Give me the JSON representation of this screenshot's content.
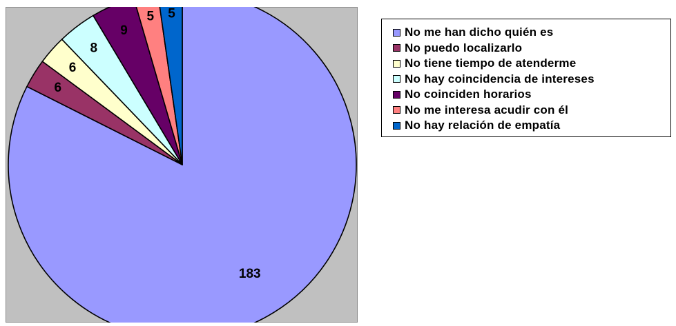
{
  "chart_data": {
    "type": "pie",
    "title": "",
    "categories": [
      "No me han dicho quién es",
      "No puedo localizarlo",
      "No tiene tiempo de atenderme",
      "No hay coincidencia de intereses",
      "No coinciden horarios",
      "No me interesa acudir con él",
      "No hay relación de empatía"
    ],
    "values": [
      183,
      6,
      6,
      8,
      9,
      5,
      5
    ],
    "colors": [
      "#9999ff",
      "#993366",
      "#ffffcc",
      "#ccffff",
      "#660066",
      "#ff8080",
      "#0066cc"
    ],
    "label_colors": [
      "#000000",
      "#000000",
      "#000000",
      "#000000",
      "#000000",
      "#000000",
      "#000000"
    ],
    "legend_position": "right",
    "start_angle_deg": 0,
    "direction": "clockwise",
    "background": "#c0c0c0"
  }
}
